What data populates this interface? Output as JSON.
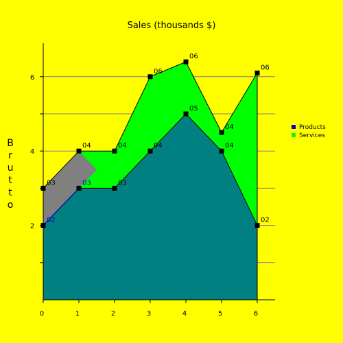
{
  "chart_data": {
    "type": "area",
    "title": "Sales (thousands $)",
    "ylabel_chars": [
      "B",
      "r",
      "u",
      "t",
      "t",
      "o"
    ],
    "x": [
      0,
      1,
      2,
      3,
      4,
      5,
      6
    ],
    "x_tick_labels": [
      "0",
      "1",
      "2",
      "3",
      "4",
      "5",
      "6"
    ],
    "y_tick_labels": [
      "2",
      "4",
      "6"
    ],
    "y_tick_values": [
      2,
      4,
      6
    ],
    "xlim": [
      0,
      6.5
    ],
    "ylim": [
      0,
      6.9
    ],
    "grid": "horizontal",
    "legend_position": "right",
    "background_color": "#ffff00",
    "series": [
      {
        "name": "Products",
        "values": [
          2,
          3,
          3,
          4,
          5,
          4,
          2
        ],
        "labels": [
          "02",
          "03",
          "03",
          "04",
          "05",
          "04",
          "02"
        ],
        "legend_color": "#0000cc",
        "fill_color": "#008080"
      },
      {
        "name": "Services",
        "values": [
          3,
          4,
          4,
          6,
          6.4,
          4.5,
          6.1
        ],
        "labels": [
          "03",
          "04",
          "04",
          "06",
          "06",
          "04",
          "06"
        ],
        "legend_color": "#00ff00",
        "fill_color": "#00ff00",
        "overlap_fill_color": "#808080"
      }
    ]
  }
}
